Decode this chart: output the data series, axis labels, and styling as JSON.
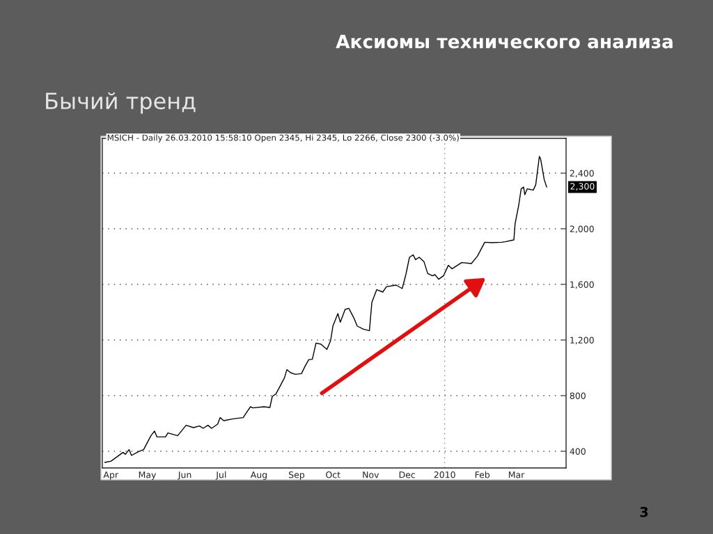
{
  "chart_data": {
    "type": "line",
    "title": "Аксиомы технического анализа",
    "subtitle": "Бычий тренд",
    "annotations": [
      "MSICH - Daily 26.03.2010 15:58:10 Open 2345, Hi 2345, Lo 2266, Close 2300 (-3.0%)",
      "2,300",
      "3"
    ],
    "x": [
      "2009-03-27",
      "2009-04-01",
      "2009-04-05",
      "2009-04-11",
      "2009-04-13",
      "2009-04-16",
      "2009-04-18",
      "2009-04-24",
      "2009-04-28",
      "2009-05-01",
      "2009-05-04",
      "2009-05-07",
      "2009-05-09",
      "2009-05-16",
      "2009-05-18",
      "2009-05-26",
      "2009-06-02",
      "2009-06-08",
      "2009-06-13",
      "2009-06-16",
      "2009-06-20",
      "2009-06-23",
      "2009-06-28",
      "2009-06-30",
      "2009-07-03",
      "2009-07-10",
      "2009-07-14",
      "2009-07-19",
      "2009-07-22",
      "2009-07-25",
      "2009-07-27",
      "2009-08-05",
      "2009-08-10",
      "2009-08-12",
      "2009-08-15",
      "2009-08-19",
      "2009-08-22",
      "2009-08-24",
      "2009-08-27",
      "2009-08-31",
      "2009-09-05",
      "2009-09-08",
      "2009-09-11",
      "2009-09-14",
      "2009-09-17",
      "2009-09-21",
      "2009-09-26",
      "2009-09-29",
      "2009-10-01",
      "2009-10-05",
      "2009-10-07",
      "2009-10-11",
      "2009-10-14",
      "2009-10-18",
      "2009-10-21",
      "2009-10-26",
      "2009-10-31",
      "2009-11-02",
      "2009-11-06",
      "2009-11-11",
      "2009-11-14",
      "2009-11-22",
      "2009-11-27",
      "2009-11-30",
      "2009-12-03",
      "2009-12-06",
      "2009-12-08",
      "2009-12-11",
      "2009-12-15",
      "2009-12-18",
      "2009-12-22",
      "2009-12-24",
      "2009-12-27",
      "2009-12-31",
      "2010-01-04",
      "2010-01-07",
      "2010-01-15",
      "2010-01-23",
      "2010-01-28",
      "2010-02-03",
      "2010-02-09",
      "2010-02-17",
      "2010-02-20",
      "2010-02-27",
      "2010-02-28",
      "2010-03-03",
      "2010-03-05",
      "2010-03-07",
      "2010-03-08",
      "2010-03-10",
      "2010-03-15",
      "2010-03-17",
      "2010-03-20",
      "2010-03-21",
      "2010-03-24",
      "2010-03-26"
    ],
    "series": [
      {
        "color": "#000000",
        "values": [
          320,
          328,
          353,
          392,
          378,
          412,
          370,
          398,
          412,
          462,
          512,
          545,
          503,
          503,
          532,
          512,
          587,
          570,
          582,
          565,
          587,
          565,
          595,
          642,
          620,
          632,
          637,
          642,
          682,
          720,
          712,
          720,
          715,
          795,
          812,
          878,
          928,
          987,
          965,
          953,
          958,
          1012,
          1058,
          1062,
          1178,
          1170,
          1132,
          1195,
          1303,
          1390,
          1328,
          1420,
          1428,
          1362,
          1300,
          1278,
          1267,
          1470,
          1562,
          1545,
          1583,
          1595,
          1570,
          1670,
          1795,
          1812,
          1778,
          1795,
          1762,
          1678,
          1662,
          1670,
          1637,
          1662,
          1737,
          1712,
          1757,
          1750,
          1803,
          1903,
          1900,
          1903,
          1907,
          1920,
          2037,
          2170,
          2287,
          2300,
          2245,
          2287,
          2278,
          2317,
          2520,
          2503,
          2353,
          2300
        ]
      }
    ],
    "xlim": [
      "2009-03-25",
      "2010-04-11"
    ],
    "xticks": [
      {
        "value": "2009-04-01",
        "label": "Apr"
      },
      {
        "value": "2009-05-01",
        "label": "May"
      },
      {
        "value": "2009-06-01",
        "label": "Jun"
      },
      {
        "value": "2009-07-01",
        "label": "Jul"
      },
      {
        "value": "2009-08-01",
        "label": "Aug"
      },
      {
        "value": "2009-09-01",
        "label": "Sep"
      },
      {
        "value": "2009-10-01",
        "label": "Oct"
      },
      {
        "value": "2009-11-01",
        "label": "Nov"
      },
      {
        "value": "2009-12-01",
        "label": "Dec"
      },
      {
        "value": "2010-01-01",
        "label": "2010"
      },
      {
        "value": "2010-02-01",
        "label": "Feb"
      },
      {
        "value": "2010-03-01",
        "label": "Mar"
      }
    ],
    "ylim": [
      280,
      2650
    ],
    "yticks": [
      400,
      800,
      {
        "value": 1200,
        "label": "1,200"
      },
      {
        "value": 1600,
        "label": "1,600"
      },
      {
        "value": 2000,
        "label": "2,000"
      },
      {
        "value": 2400,
        "label": "2,400"
      }
    ],
    "grid": "y",
    "ref_lines": [
      {
        "axis": "x",
        "value": "2010-01-01",
        "line_style": "dotted",
        "color": "#808080"
      }
    ]
  }
}
